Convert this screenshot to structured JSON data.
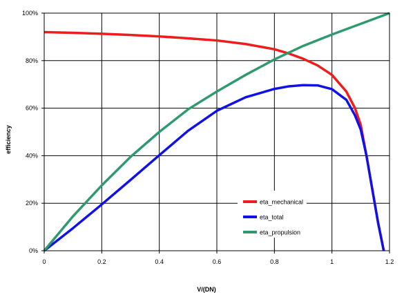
{
  "chart_data": {
    "type": "line",
    "title": "",
    "xlabel": "V/(DN)",
    "ylabel": "efficiency",
    "xlim": [
      0,
      1.2
    ],
    "ylim": [
      0,
      100
    ],
    "grid": true,
    "legend_position": "lower-right",
    "x_ticks": [
      {
        "value": 0,
        "label": "0"
      },
      {
        "value": 0.2,
        "label": "0.2"
      },
      {
        "value": 0.4,
        "label": "0.4"
      },
      {
        "value": 0.6,
        "label": "0.6"
      },
      {
        "value": 0.8,
        "label": "0.8"
      },
      {
        "value": 1.0,
        "label": "1"
      },
      {
        "value": 1.2,
        "label": "1.2"
      }
    ],
    "y_ticks": [
      {
        "value": 0,
        "label": "0%"
      },
      {
        "value": 20,
        "label": "20%"
      },
      {
        "value": 40,
        "label": "40%"
      },
      {
        "value": 60,
        "label": "60%"
      },
      {
        "value": 80,
        "label": "80%"
      },
      {
        "value": 100,
        "label": "100%"
      }
    ],
    "series": [
      {
        "name": "eta_mechanical",
        "color": "#ee1c1c",
        "points": [
          [
            0,
            92
          ],
          [
            0.1,
            91.7
          ],
          [
            0.2,
            91.3
          ],
          [
            0.3,
            90.8
          ],
          [
            0.4,
            90.2
          ],
          [
            0.5,
            89.4
          ],
          [
            0.6,
            88.5
          ],
          [
            0.7,
            87
          ],
          [
            0.8,
            84.8
          ],
          [
            0.85,
            83
          ],
          [
            0.9,
            80.8
          ],
          [
            0.95,
            78
          ],
          [
            1.0,
            74
          ],
          [
            1.05,
            67
          ],
          [
            1.08,
            60
          ],
          [
            1.1,
            53
          ],
          [
            1.12,
            40
          ],
          [
            1.14,
            26
          ],
          [
            1.16,
            12
          ],
          [
            1.18,
            0
          ]
        ]
      },
      {
        "name": "eta_total",
        "color": "#1010e8",
        "points": [
          [
            0,
            0
          ],
          [
            0.1,
            9.5
          ],
          [
            0.2,
            19.5
          ],
          [
            0.3,
            29.8
          ],
          [
            0.4,
            40.2
          ],
          [
            0.5,
            50.5
          ],
          [
            0.6,
            58.9
          ],
          [
            0.7,
            64.6
          ],
          [
            0.8,
            68.1
          ],
          [
            0.85,
            69.2
          ],
          [
            0.9,
            69.7
          ],
          [
            0.95,
            69.6
          ],
          [
            1.0,
            68
          ],
          [
            1.05,
            63.5
          ],
          [
            1.08,
            57
          ],
          [
            1.1,
            51
          ],
          [
            1.12,
            40
          ],
          [
            1.14,
            26
          ],
          [
            1.16,
            12
          ],
          [
            1.18,
            0
          ]
        ]
      },
      {
        "name": "eta_propulsion",
        "color": "#2e9a6e",
        "points": [
          [
            0,
            0
          ],
          [
            0.1,
            14.5
          ],
          [
            0.2,
            27.5
          ],
          [
            0.3,
            39.5
          ],
          [
            0.4,
            50
          ],
          [
            0.5,
            59.5
          ],
          [
            0.6,
            67
          ],
          [
            0.7,
            74
          ],
          [
            0.8,
            80.5
          ],
          [
            0.9,
            86.2
          ],
          [
            1.0,
            91
          ],
          [
            1.1,
            95.5
          ],
          [
            1.2,
            100
          ]
        ]
      }
    ]
  }
}
